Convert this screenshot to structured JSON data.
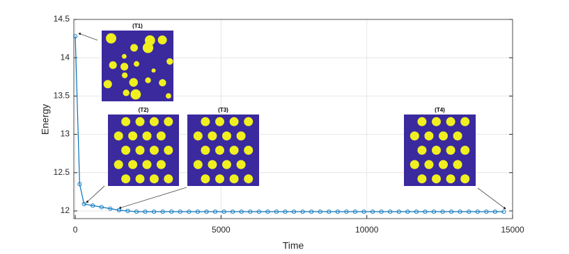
{
  "chart_data": {
    "type": "line",
    "x_label": "Time",
    "y_label": "Energy",
    "x": [
      0,
      150,
      300,
      600,
      900,
      1200,
      1500,
      1800,
      2100,
      2400,
      2700,
      3000,
      3300,
      3600,
      3900,
      4200,
      4500,
      4800,
      5100,
      5400,
      5700,
      6000,
      6300,
      6600,
      6900,
      7200,
      7500,
      7800,
      8100,
      8400,
      8700,
      9000,
      9300,
      9600,
      9900,
      10200,
      10500,
      10800,
      11100,
      11400,
      11700,
      12000,
      12300,
      12600,
      12900,
      13200,
      13500,
      13800,
      14100,
      14400,
      14700
    ],
    "series": [
      {
        "name": "Energy",
        "color": "#0072bd",
        "values": [
          14.28,
          12.35,
          12.09,
          12.07,
          12.05,
          12.03,
          12.01,
          12.0,
          11.99,
          11.99,
          11.99,
          11.99,
          11.99,
          11.99,
          11.99,
          11.99,
          11.99,
          11.99,
          11.99,
          11.99,
          11.99,
          11.99,
          11.99,
          11.99,
          11.99,
          11.99,
          11.99,
          11.99,
          11.99,
          11.99,
          11.99,
          11.99,
          11.99,
          11.99,
          11.99,
          11.99,
          11.99,
          11.99,
          11.99,
          11.99,
          11.99,
          11.99,
          11.99,
          11.99,
          11.99,
          11.99,
          11.99,
          11.99,
          11.99,
          11.99,
          11.99
        ]
      }
    ],
    "xlim": [
      -50,
      15000
    ],
    "ylim": [
      11.9,
      14.5
    ],
    "xticks": [
      0,
      5000,
      10000,
      15000
    ],
    "yticks": [
      12,
      12.5,
      13,
      13.5,
      14,
      14.5
    ],
    "grid": true,
    "annotations": [
      "(T1)",
      "(T2)",
      "(T3)",
      "(T4)"
    ]
  }
}
